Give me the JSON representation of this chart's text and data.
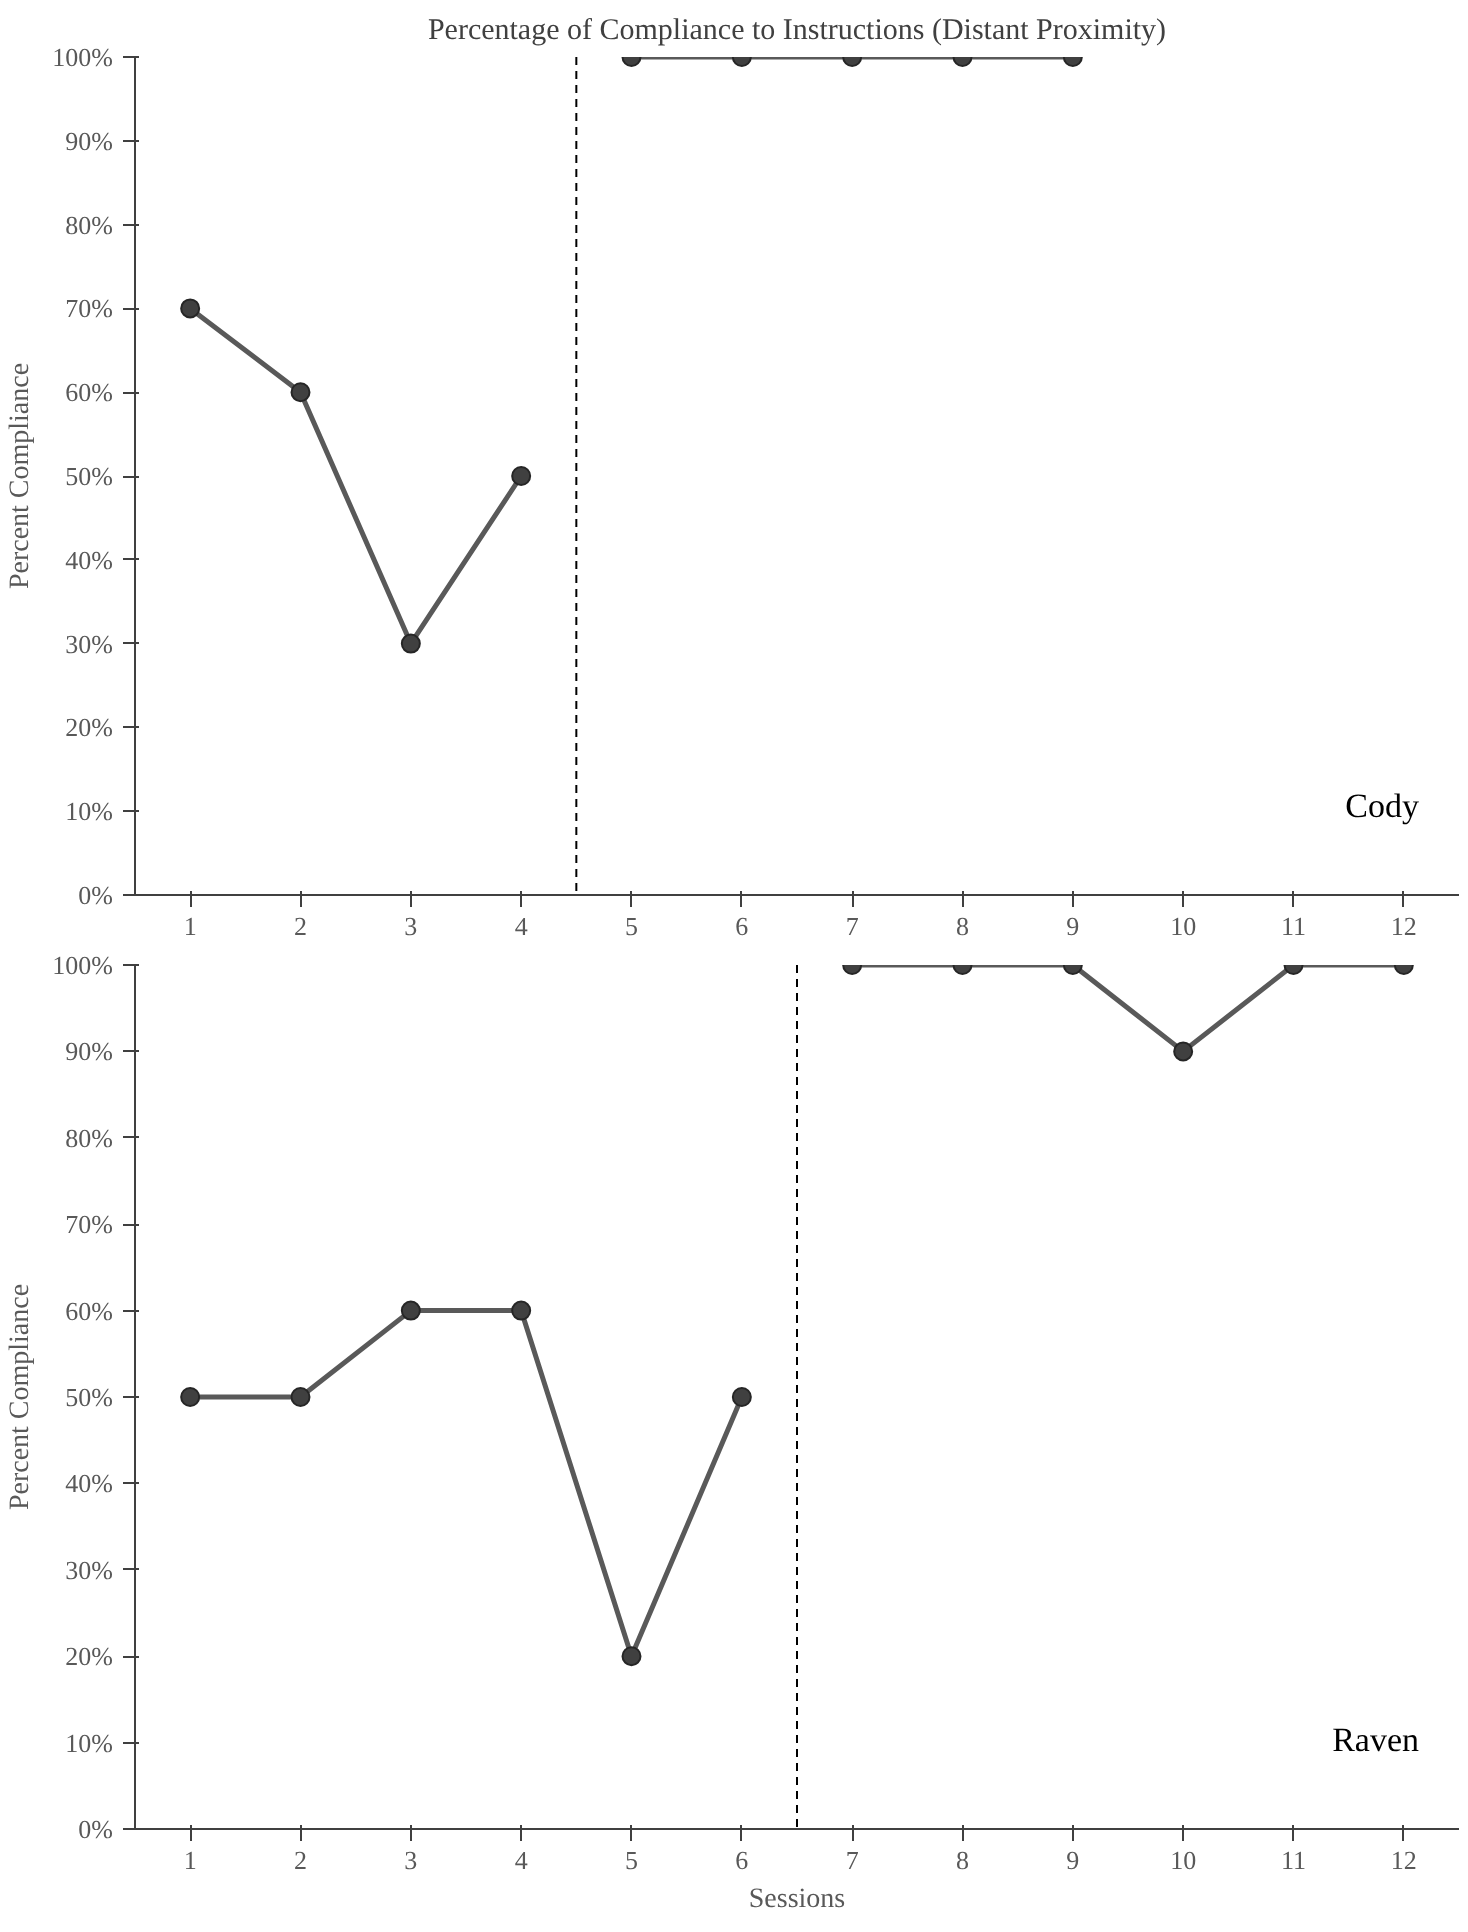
{
  "chart_data": [
    {
      "type": "line",
      "title": "Percentage of Compliance to Instructions (Distant Proximity)",
      "ylabel": "Percent Compliance",
      "xlim": [
        0.5,
        12.5
      ],
      "xticks": [
        1,
        2,
        3,
        4,
        5,
        6,
        7,
        8,
        9,
        10,
        11,
        12
      ],
      "ylim": [
        0,
        100
      ],
      "yticks": [
        {
          "value": 0,
          "label": "0%"
        },
        {
          "value": 10,
          "label": "10%"
        },
        {
          "value": 20,
          "label": "20%"
        },
        {
          "value": 30,
          "label": "30%"
        },
        {
          "value": 40,
          "label": "40%"
        },
        {
          "value": 50,
          "label": "50%"
        },
        {
          "value": 60,
          "label": "60%"
        },
        {
          "value": 70,
          "label": "70%"
        },
        {
          "value": 80,
          "label": "80%"
        },
        {
          "value": 90,
          "label": "90%"
        },
        {
          "value": 100,
          "label": "100%"
        }
      ],
      "grid": false,
      "marker": "circle",
      "line_style": "solid",
      "annotations": [
        "Cody"
      ],
      "ref_lines": [
        {
          "axis": "x",
          "value": 4.5,
          "color": "#000000",
          "line_style": "dashed"
        }
      ],
      "series": [
        {
          "x": [
            1,
            2,
            3,
            4
          ],
          "values": [
            70,
            60,
            30,
            50
          ],
          "color": "#595959"
        },
        {
          "x": [
            5,
            6,
            7,
            8,
            9
          ],
          "values": [
            100,
            100,
            100,
            100,
            100
          ],
          "color": "#595959"
        }
      ]
    },
    {
      "type": "line",
      "xlabel": "Sessions",
      "ylabel": "Percent Compliance",
      "xlim": [
        0.5,
        12.5
      ],
      "xticks": [
        1,
        2,
        3,
        4,
        5,
        6,
        7,
        8,
        9,
        10,
        11,
        12
      ],
      "ylim": [
        0,
        100
      ],
      "yticks": [
        {
          "value": 0,
          "label": "0%"
        },
        {
          "value": 10,
          "label": "10%"
        },
        {
          "value": 20,
          "label": "20%"
        },
        {
          "value": 30,
          "label": "30%"
        },
        {
          "value": 40,
          "label": "40%"
        },
        {
          "value": 50,
          "label": "50%"
        },
        {
          "value": 60,
          "label": "60%"
        },
        {
          "value": 70,
          "label": "70%"
        },
        {
          "value": 80,
          "label": "80%"
        },
        {
          "value": 90,
          "label": "90%"
        },
        {
          "value": 100,
          "label": "100%"
        }
      ],
      "grid": false,
      "marker": "circle",
      "line_style": "solid",
      "annotations": [
        "Raven"
      ],
      "ref_lines": [
        {
          "axis": "x",
          "value": 6.5,
          "color": "#000000",
          "line_style": "dashed"
        }
      ],
      "series": [
        {
          "x": [
            1,
            2,
            3,
            4,
            5,
            6
          ],
          "values": [
            50,
            50,
            60,
            60,
            20,
            50
          ],
          "color": "#595959"
        },
        {
          "x": [
            7,
            8,
            9,
            10,
            11,
            12
          ],
          "values": [
            100,
            100,
            100,
            90,
            100,
            100
          ],
          "color": "#595959"
        }
      ]
    }
  ]
}
